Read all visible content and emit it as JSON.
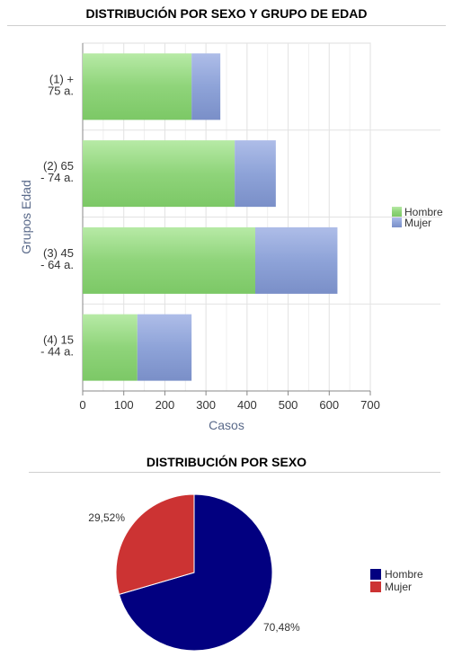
{
  "chart_data": [
    {
      "type": "bar",
      "orientation": "horizontal",
      "stacked": true,
      "title": "DISTRIBUCIÓN POR SEXO Y GRUPO DE EDAD",
      "xlabel": "Casos",
      "ylabel": "Grupos Edad",
      "xlim": [
        0,
        700
      ],
      "xticks": [
        0,
        100,
        200,
        300,
        400,
        500,
        600,
        700
      ],
      "categories": [
        [
          "(1) +",
          "75 a."
        ],
        [
          "(2) 65",
          "- 74 a."
        ],
        [
          "(3) 45",
          "- 64 a."
        ],
        [
          "(4) 15",
          "- 44 a."
        ]
      ],
      "series": [
        {
          "name": "Hombre",
          "color": "#8fd47a",
          "values": [
            265,
            370,
            420,
            133
          ]
        },
        {
          "name": "Mujer",
          "color": "#8ea3d8",
          "values": [
            70,
            100,
            200,
            132
          ]
        }
      ],
      "legend_position": "right",
      "grid": true
    },
    {
      "type": "pie",
      "title": "DISTRIBUCIÓN POR SEXO",
      "slices": [
        {
          "name": "Hombre",
          "value": 70.48,
          "label": "70,48%",
          "color": "#020080"
        },
        {
          "name": "Mujer",
          "value": 29.52,
          "label": "29,52%",
          "color": "#cc3333"
        }
      ],
      "legend_position": "right"
    }
  ]
}
